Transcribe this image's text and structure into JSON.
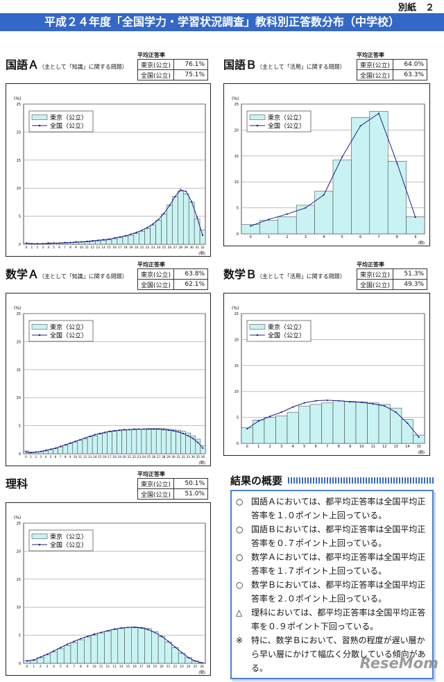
{
  "header": {
    "tag": "別紙　２",
    "title": "平成２４年度「全国学力・学習状況調査」教科別正答数分布（中学校）"
  },
  "chart_data": [
    {
      "type": "combo",
      "title": "国語Ａ",
      "subtitle": "（主として「知識」に関する問題）",
      "table": {
        "caption": "平均正答率",
        "rows": [
          [
            "東京(公立)",
            "76.1%"
          ],
          [
            "全国(公立)",
            "75.1%"
          ]
        ]
      },
      "y_label": "(%)",
      "x_label": "(問)",
      "categories": [
        "0",
        "1",
        "2",
        "3",
        "4",
        "5",
        "6",
        "7",
        "8",
        "9",
        "10",
        "11",
        "12",
        "13",
        "14",
        "15",
        "16",
        "17",
        "18",
        "19",
        "20",
        "21",
        "22",
        "23",
        "24",
        "25",
        "26",
        "27",
        "28",
        "29",
        "30",
        "31",
        "32"
      ],
      "series": [
        {
          "name": "東京（公立）",
          "kind": "bar",
          "color": "#c9f3f3",
          "values": [
            0.2,
            0.1,
            0.1,
            0.1,
            0.1,
            0.2,
            0.2,
            0.2,
            0.3,
            0.3,
            0.4,
            0.4,
            0.5,
            0.6,
            0.7,
            0.8,
            1.0,
            1.2,
            1.4,
            1.6,
            1.9,
            2.3,
            2.8,
            3.4,
            4.3,
            5.4,
            7.0,
            8.5,
            9.5,
            9.0,
            7.5,
            4.5,
            2.5
          ]
        },
        {
          "name": "全国（公立）",
          "kind": "line",
          "color": "#1c1c8a",
          "values": [
            0.2,
            0.1,
            0.1,
            0.1,
            0.2,
            0.2,
            0.2,
            0.3,
            0.3,
            0.4,
            0.4,
            0.5,
            0.6,
            0.7,
            0.8,
            0.9,
            1.1,
            1.3,
            1.5,
            1.8,
            2.1,
            2.5,
            3.0,
            3.6,
            4.4,
            5.5,
            6.9,
            8.5,
            9.7,
            9.4,
            7.6,
            4.8,
            1.6
          ]
        }
      ],
      "ylim": [
        0,
        25
      ],
      "yticks": [
        0,
        5,
        10,
        15,
        20,
        25
      ],
      "grid": true
    },
    {
      "type": "combo",
      "title": "国語Ｂ",
      "subtitle": "（主として「活用」に関する問題）",
      "table": {
        "caption": "平均正答率",
        "rows": [
          [
            "東京(公立)",
            "64.0%"
          ],
          [
            "全国(公立)",
            "63.3%"
          ]
        ]
      },
      "y_label": "(%)",
      "x_label": "(問)",
      "categories": [
        "0",
        "1",
        "2",
        "3",
        "4",
        "5",
        "6",
        "7",
        "8",
        "9"
      ],
      "series": [
        {
          "name": "東京（公立）",
          "kind": "bar",
          "color": "#c9f3f3",
          "values": [
            1.8,
            2.6,
            3.3,
            5.5,
            8.2,
            14.2,
            22.4,
            23.6,
            14.0,
            3.3
          ]
        },
        {
          "name": "全国（公立）",
          "kind": "line",
          "color": "#1c1c8a",
          "values": [
            1.5,
            2.8,
            3.8,
            5.0,
            7.5,
            14.8,
            20.8,
            23.2,
            13.6,
            3.2
          ]
        }
      ],
      "ylim": [
        0,
        25
      ],
      "yticks": [
        0,
        5,
        10,
        15,
        20,
        25
      ],
      "grid": true
    },
    {
      "type": "combo",
      "title": "数学Ａ",
      "subtitle": "（主として「知識」に関する問題）",
      "table": {
        "caption": "平均正答率",
        "rows": [
          [
            "東京(公立)",
            "63.8%"
          ],
          [
            "全国(公立)",
            "62.1%"
          ]
        ]
      },
      "y_label": "(%)",
      "x_label": "(問)",
      "categories": [
        "0",
        "1",
        "2",
        "3",
        "4",
        "5",
        "6",
        "7",
        "8",
        "9",
        "10",
        "11",
        "12",
        "13",
        "14",
        "15",
        "16",
        "17",
        "18",
        "19",
        "20",
        "21",
        "22",
        "23",
        "24",
        "25",
        "26",
        "27",
        "28",
        "29",
        "30",
        "31",
        "32",
        "33",
        "34",
        "35",
        "36"
      ],
      "series": [
        {
          "name": "東京（公立）",
          "kind": "bar",
          "color": "#c9f3f3",
          "values": [
            0.5,
            0.3,
            0.3,
            0.4,
            0.5,
            0.7,
            0.9,
            1.2,
            1.5,
            1.8,
            2.1,
            2.4,
            2.7,
            3.0,
            3.2,
            3.5,
            3.7,
            3.9,
            4.0,
            4.1,
            4.2,
            4.3,
            4.3,
            4.4,
            4.4,
            4.5,
            4.5,
            4.5,
            4.5,
            4.4,
            4.3,
            4.2,
            4.0,
            3.7,
            3.2,
            2.6,
            1.4
          ]
        },
        {
          "name": "全国（公立）",
          "kind": "line",
          "color": "#1c1c8a",
          "values": [
            0.3,
            0.2,
            0.3,
            0.4,
            0.6,
            0.8,
            1.0,
            1.3,
            1.6,
            1.9,
            2.2,
            2.5,
            2.8,
            3.1,
            3.4,
            3.6,
            3.8,
            4.0,
            4.1,
            4.2,
            4.3,
            4.3,
            4.4,
            4.4,
            4.4,
            4.4,
            4.4,
            4.4,
            4.3,
            4.2,
            4.1,
            3.9,
            3.6,
            3.2,
            2.7,
            2.0,
            1.0
          ]
        }
      ],
      "ylim": [
        0,
        25
      ],
      "yticks": [
        0,
        5,
        10,
        15,
        20,
        25
      ],
      "grid": true
    },
    {
      "type": "combo",
      "title": "数学Ｂ",
      "subtitle": "（主として「活用」に関する問題）",
      "table": {
        "caption": "平均正答率",
        "rows": [
          [
            "東京(公立)",
            "51.3%"
          ],
          [
            "全国(公立)",
            "49.3%"
          ]
        ]
      },
      "y_label": "(%)",
      "x_label": "(問)",
      "categories": [
        "0",
        "1",
        "2",
        "3",
        "4",
        "5",
        "6",
        "7",
        "8",
        "9",
        "10",
        "11",
        "12",
        "13",
        "14",
        "15"
      ],
      "series": [
        {
          "name": "東京（公立）",
          "kind": "bar",
          "color": "#c9f3f3",
          "values": [
            3.0,
            4.5,
            5.0,
            5.3,
            6.0,
            7.2,
            7.5,
            7.8,
            8.2,
            8.1,
            8.0,
            7.8,
            7.5,
            6.8,
            4.6,
            1.6
          ]
        },
        {
          "name": "全国（公立）",
          "kind": "line",
          "color": "#1c1c8a",
          "values": [
            2.8,
            4.3,
            5.2,
            6.0,
            7.0,
            7.8,
            8.2,
            8.3,
            8.2,
            8.0,
            7.9,
            7.6,
            7.2,
            6.0,
            3.9,
            1.2
          ]
        }
      ],
      "ylim": [
        0,
        25
      ],
      "yticks": [
        0,
        5,
        10,
        15,
        20,
        25
      ],
      "grid": true
    },
    {
      "type": "combo",
      "title": "理科",
      "table": {
        "caption": "平均正答率",
        "rows": [
          [
            "東京(公立)",
            "50.1%"
          ],
          [
            "全国(公立)",
            "51.0%"
          ]
        ]
      },
      "y_label": "(%)",
      "x_label": "(問)",
      "categories": [
        "0",
        "1",
        "2",
        "3",
        "4",
        "5",
        "6",
        "7",
        "8",
        "9",
        "10",
        "11",
        "12",
        "13",
        "14",
        "15",
        "16",
        "17",
        "18",
        "19",
        "20",
        "21",
        "22",
        "23",
        "24",
        "25",
        "26"
      ],
      "series": [
        {
          "name": "東京（公立）",
          "kind": "bar",
          "color": "#c9f3f3",
          "values": [
            0.5,
            0.5,
            1.0,
            1.5,
            2.0,
            2.6,
            3.2,
            3.7,
            4.2,
            4.7,
            5.0,
            5.4,
            5.7,
            6.0,
            6.2,
            6.4,
            6.5,
            6.4,
            6.2,
            5.6,
            4.8,
            3.8,
            2.8,
            1.8,
            1.0,
            0.4,
            0.1
          ]
        },
        {
          "name": "全国（公立）",
          "kind": "line",
          "color": "#1c1c8a",
          "values": [
            0.4,
            0.6,
            1.1,
            1.6,
            2.2,
            2.8,
            3.4,
            3.9,
            4.4,
            4.8,
            5.2,
            5.5,
            5.8,
            6.1,
            6.3,
            6.4,
            6.4,
            6.3,
            6.0,
            5.5,
            4.8,
            3.9,
            2.9,
            1.9,
            1.0,
            0.4,
            0.1
          ]
        }
      ],
      "ylim": [
        0,
        25
      ],
      "yticks": [
        0,
        5,
        10,
        15,
        20,
        25
      ],
      "grid": true
    }
  ],
  "summary": {
    "title": "結果の概要",
    "items": [
      {
        "mark": "○",
        "text": "国語Ａにおいては、都平均正答率は全国平均正答率を１.０ポイント上回っている。"
      },
      {
        "mark": "○",
        "text": "国語Ｂにおいては、都平均正答率は全国平均正答率を０.７ポイント上回っている。"
      },
      {
        "mark": "○",
        "text": "数学Ａにおいては、都平均正答率は全国平均正答率を１.７ポイント上回っている。"
      },
      {
        "mark": "○",
        "text": "数学Ｂにおいては、都平均正答率は全国平均正答率を２.０ポイント上回っている。"
      },
      {
        "mark": "△",
        "text": "理科においては、都平均正答率は全国平均正答率を０.９ポイント下回っている。"
      },
      {
        "mark": "※",
        "text": "特に、数学Ｂにおいて、習熟の程度が遅い層から早い層にかけて幅広く分散している傾向がある。"
      }
    ]
  },
  "watermark": "ReseMom"
}
